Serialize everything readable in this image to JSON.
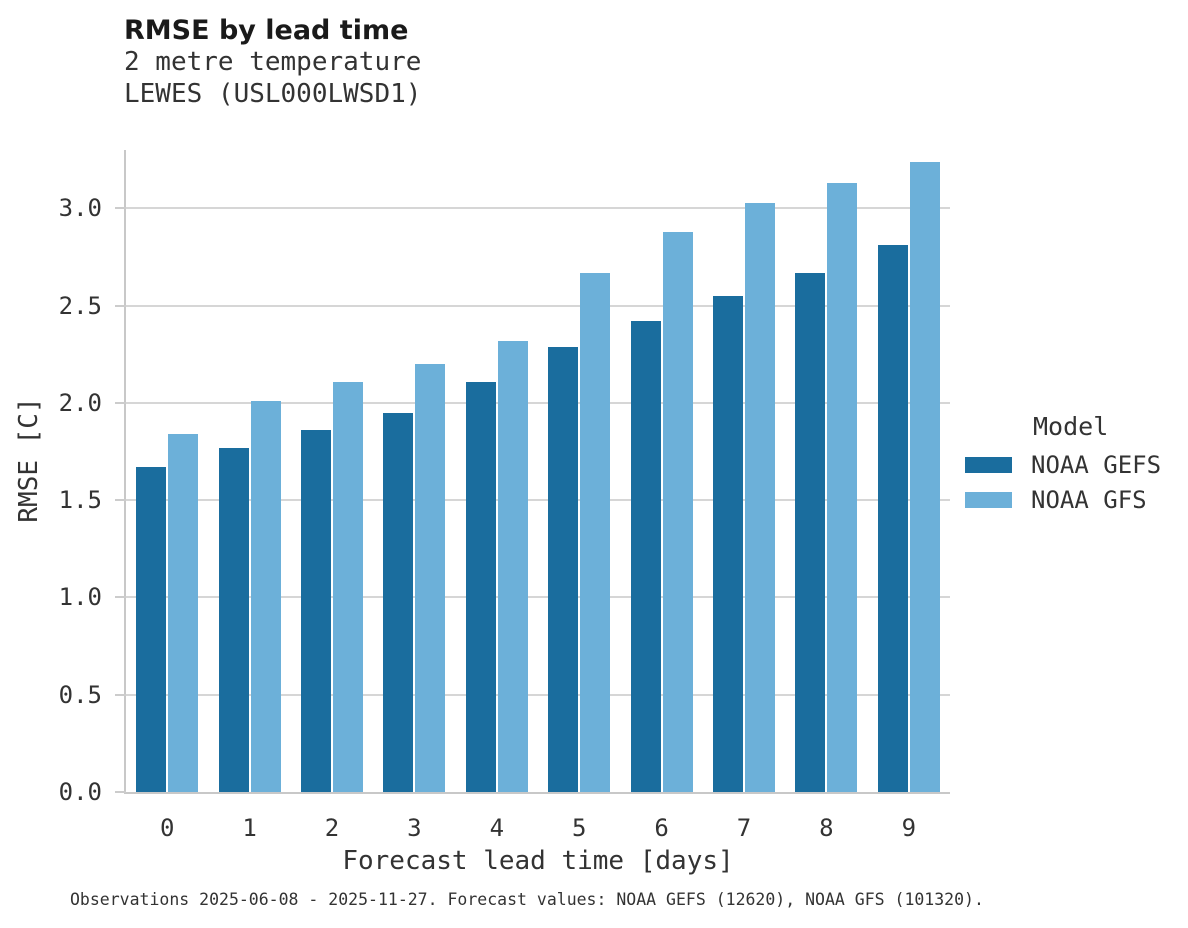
{
  "header": {
    "title": "RMSE by lead time",
    "subtitle_line1": "2 metre temperature",
    "subtitle_line2": "LEWES (USL000LWSD1)"
  },
  "chart_data": {
    "type": "bar",
    "title": "RMSE by lead time",
    "subtitle": [
      "2 metre temperature",
      "LEWES (USL000LWSD1)"
    ],
    "categories": [
      "0",
      "1",
      "2",
      "3",
      "4",
      "5",
      "6",
      "7",
      "8",
      "9"
    ],
    "series": [
      {
        "name": "NOAA GEFS",
        "color": "#1a6d9e",
        "values": [
          1.67,
          1.77,
          1.86,
          1.95,
          2.11,
          2.29,
          2.42,
          2.55,
          2.67,
          2.81
        ]
      },
      {
        "name": "NOAA GFS",
        "color": "#6cb0d9",
        "values": [
          1.84,
          2.01,
          2.11,
          2.2,
          2.32,
          2.67,
          2.88,
          3.03,
          3.13,
          3.24
        ]
      }
    ],
    "xlabel": "Forecast lead time [days]",
    "ylabel": "RMSE [C]",
    "ylim": [
      0.0,
      3.3
    ],
    "yticks": [
      0.0,
      0.5,
      1.0,
      1.5,
      2.0,
      2.5,
      3.0
    ],
    "grid": true,
    "legend_title": "Model",
    "legend_position": "right"
  },
  "legend": {
    "title": "Model",
    "items": [
      {
        "label": "NOAA GEFS",
        "color": "#1a6d9e"
      },
      {
        "label": "NOAA GFS",
        "color": "#6cb0d9"
      }
    ]
  },
  "caption": "Observations 2025-06-08 - 2025-11-27. Forecast values: NOAA GEFS (12620), NOAA GFS (101320)."
}
